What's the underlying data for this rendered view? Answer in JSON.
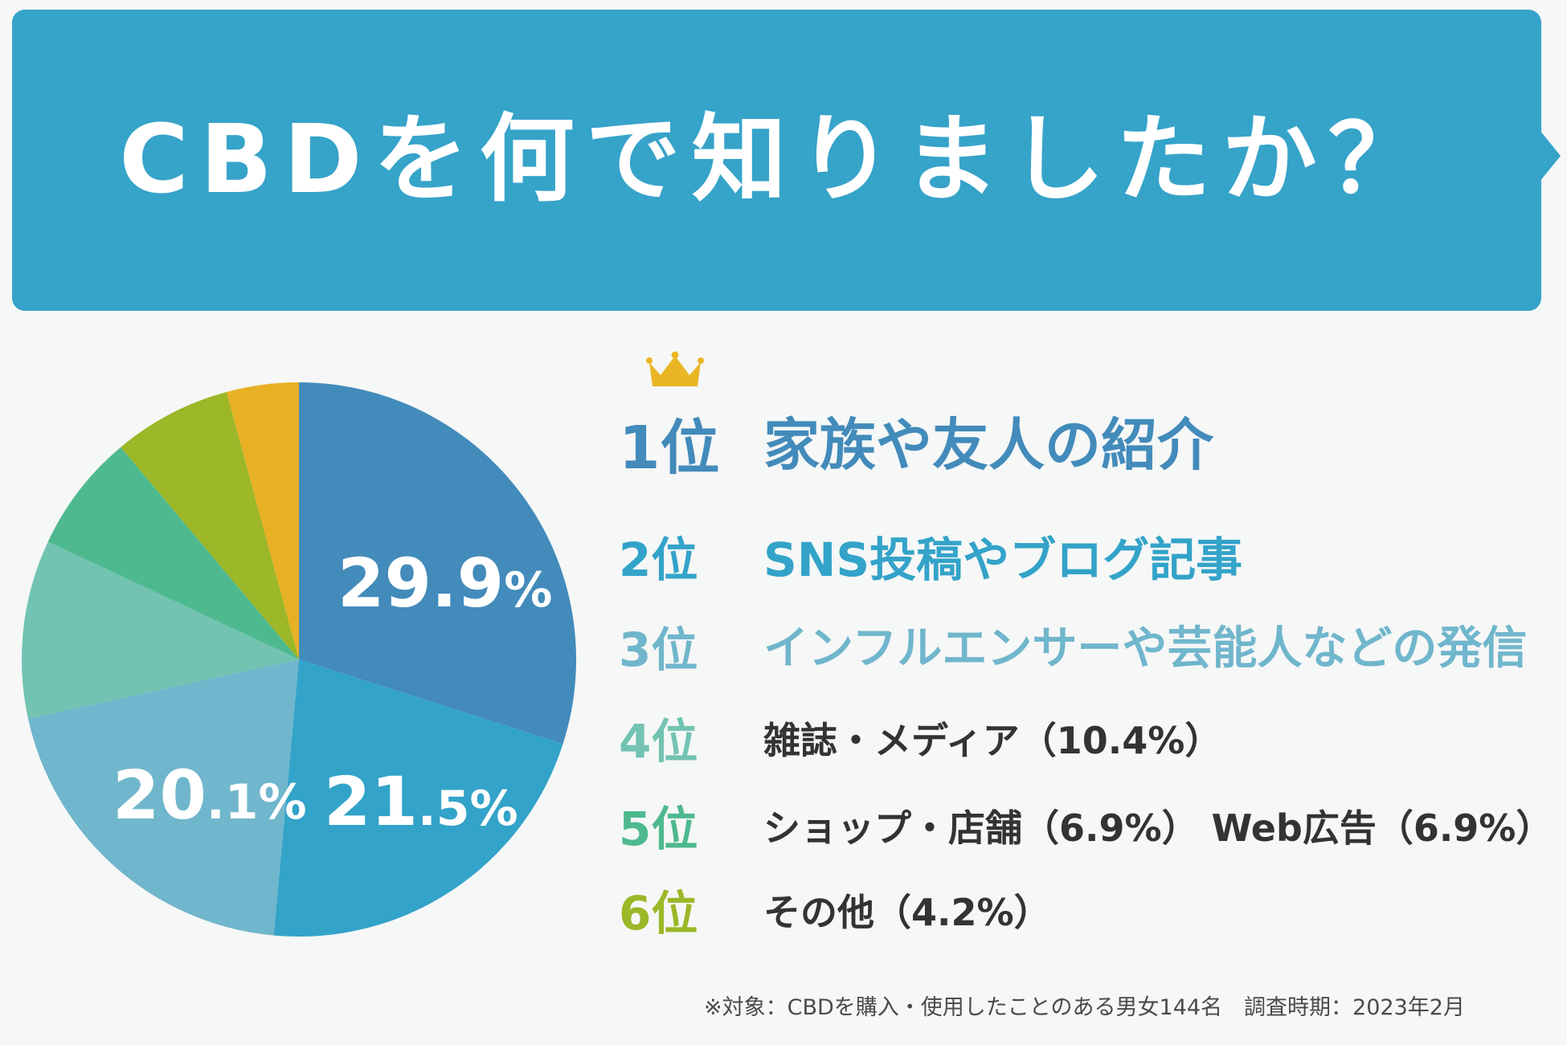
{
  "header": {
    "title": "CBDを何で知りましたか？",
    "background_color": "#36a3c9"
  },
  "chart_data": {
    "type": "pie",
    "start": "12 o'clock, clockwise",
    "slices": [
      {
        "rank": "1位",
        "category": "家族や友人の紹介",
        "value": 29.9,
        "color": "#428bbb"
      },
      {
        "rank": "2位",
        "category": "SNS投稿やブログ記事",
        "value": 21.5,
        "color": "#33a3c9"
      },
      {
        "rank": "3位",
        "category": "インフルエンサーや芸能人などの発信",
        "value": 20.1,
        "color": "#70b6cc"
      },
      {
        "rank": "4位",
        "category": "雑誌・メディア",
        "value": 10.4,
        "color": "#72c3b2"
      },
      {
        "rank": "5位",
        "category": "ショップ・店舗",
        "value": 6.9,
        "color": "#4eb98f"
      },
      {
        "rank": "5位",
        "category": "Web広告",
        "value": 6.9,
        "color": "#9cb728"
      },
      {
        "rank": "6位",
        "category": "その他",
        "value": 4.2,
        "color": "#e8b024"
      }
    ],
    "value_labels": [
      {
        "main": "29.9",
        "suffix": "%"
      },
      {
        "main": "21",
        "suffix": ".5%"
      },
      {
        "main": "20",
        "suffix": ".1%"
      }
    ]
  },
  "ranking": {
    "crown_color": "#eab624",
    "rows": [
      {
        "rank": "1位",
        "label": "家族や友人の紹介",
        "rank_color": "#428bbb",
        "label_color": "#428bbb"
      },
      {
        "rank": "2位",
        "label": "SNS投稿やブログ記事",
        "rank_color": "#33a3c9",
        "label_color": "#33a3c9"
      },
      {
        "rank": "3位",
        "label": "インフルエンサーや芸能人などの発信",
        "rank_color": "#70b6cc",
        "label_color": "#70b6cc"
      },
      {
        "rank": "4位",
        "label": "雑誌・メディア（10.4%）",
        "rank_color": "#72c3b2",
        "label_color": "#333333"
      },
      {
        "rank": "5位",
        "label": "ショップ・店舗（6.9%） Web広告（6.9%）",
        "rank_color": "#4eb98f",
        "label_color": "#333333"
      },
      {
        "rank": "6位",
        "label": "その他（4.2%）",
        "rank_color": "#9cb728",
        "label_color": "#333333"
      }
    ]
  },
  "footnote": "※対象：CBDを購入・使用したことのある男女144名　調査時期：2023年2月"
}
